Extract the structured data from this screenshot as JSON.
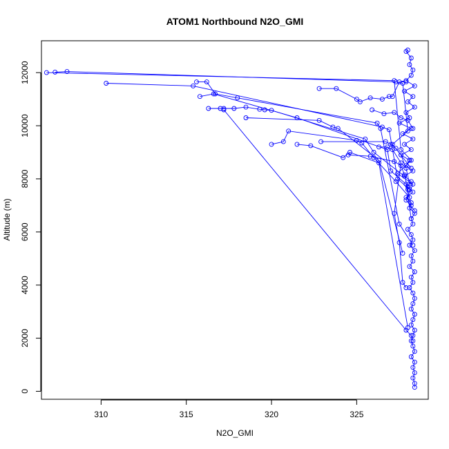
{
  "chart_data": {
    "type": "line",
    "title": "ATOM1 Northbound N2O_GMI",
    "xlabel": "N2O_GMI",
    "ylabel": "Altitude (m)",
    "xlim": [
      306.5,
      329.2
    ],
    "ylim": [
      -300,
      13200
    ],
    "xticks": [
      310,
      315,
      320,
      325
    ],
    "yticks": [
      0,
      2000,
      4000,
      6000,
      8000,
      10000,
      12000
    ],
    "grid": false,
    "legend": "none",
    "colors": {
      "series": "#0000ff",
      "axis": "#000000",
      "background": "#ffffff"
    },
    "markers": "open-circle",
    "series": [
      {
        "values": [
          [
            328.4,
            150
          ],
          [
            328.4,
            300
          ],
          [
            328.3,
            500
          ],
          [
            328.4,
            700
          ],
          [
            328.3,
            900
          ],
          [
            328.4,
            1100
          ],
          [
            328.2,
            1300
          ],
          [
            328.4,
            1500
          ],
          [
            328.3,
            1700
          ],
          [
            328.2,
            1900
          ],
          [
            328.3,
            2100
          ],
          [
            328.4,
            2300
          ],
          [
            328.2,
            2500
          ],
          [
            328.3,
            2700
          ],
          [
            328.4,
            2900
          ],
          [
            328.2,
            3100
          ],
          [
            328.3,
            3300
          ],
          [
            328.4,
            3500
          ],
          [
            328.3,
            3700
          ],
          [
            328.1,
            3900
          ],
          [
            328.3,
            4100
          ],
          [
            328.2,
            4300
          ],
          [
            328.4,
            4500
          ],
          [
            328.1,
            4700
          ],
          [
            328.3,
            4900
          ],
          [
            328.2,
            5100
          ],
          [
            328.4,
            5300
          ],
          [
            328.1,
            5500
          ],
          [
            328.3,
            5700
          ],
          [
            328.2,
            5900
          ],
          [
            328.0,
            6100
          ],
          [
            328.3,
            6300
          ],
          [
            328.2,
            6500
          ],
          [
            328.4,
            6700
          ],
          [
            328.1,
            6900
          ],
          [
            328.2,
            7100
          ],
          [
            327.9,
            7300
          ],
          [
            328.3,
            7500
          ],
          [
            328.0,
            7700
          ],
          [
            328.2,
            7900
          ],
          [
            327.8,
            8100
          ],
          [
            328.3,
            8300
          ],
          [
            327.9,
            8500
          ],
          [
            328.1,
            8700
          ],
          [
            327.6,
            8900
          ],
          [
            328.2,
            9100
          ],
          [
            327.8,
            9300
          ],
          [
            328.3,
            9500
          ],
          [
            327.7,
            9700
          ],
          [
            328.2,
            9900
          ],
          [
            327.5,
            10100
          ],
          [
            328.1,
            10300
          ],
          [
            327.9,
            10500
          ],
          [
            328.4,
            10700
          ],
          [
            328.0,
            10900
          ],
          [
            328.3,
            11100
          ],
          [
            327.8,
            11300
          ],
          [
            328.4,
            11500
          ],
          [
            327.9,
            11700
          ],
          [
            328.2,
            11900
          ],
          [
            328.3,
            12100
          ],
          [
            328.1,
            12300
          ],
          [
            328.2,
            12550
          ],
          [
            327.9,
            12800
          ],
          [
            328.0,
            12850
          ]
        ]
      },
      {
        "values": [
          [
            306.8,
            12000
          ],
          [
            327.2,
            11700
          ],
          [
            327.6,
            9100
          ],
          [
            328.2,
            8700
          ],
          [
            327.4,
            8200
          ],
          [
            328.3,
            7800
          ],
          [
            327.9,
            7200
          ],
          [
            328.4,
            6800
          ]
        ]
      },
      {
        "values": [
          [
            307.3,
            12020
          ],
          [
            308.0,
            12040
          ],
          [
            327.3,
            11650
          ],
          [
            327.7,
            11600
          ],
          [
            328.0,
            9800
          ],
          [
            327.1,
            9300
          ],
          [
            328.2,
            8400
          ]
        ]
      },
      {
        "values": [
          [
            310.3,
            11600
          ],
          [
            315.4,
            11500
          ],
          [
            326.5,
            9950
          ],
          [
            326.9,
            9850
          ],
          [
            327.4,
            8000
          ],
          [
            328.1,
            7600
          ]
        ]
      },
      {
        "values": [
          [
            315.6,
            11650
          ],
          [
            316.2,
            11650
          ],
          [
            316.7,
            11200
          ],
          [
            318.0,
            11050
          ],
          [
            326.2,
            10100
          ],
          [
            326.4,
            9900
          ],
          [
            327.5,
            6300
          ],
          [
            328.3,
            5500
          ]
        ]
      },
      {
        "values": [
          [
            315.8,
            11100
          ],
          [
            316.6,
            11200
          ],
          [
            321.5,
            10300
          ],
          [
            326.8,
            9100
          ],
          [
            327.0,
            8300
          ],
          [
            327.9,
            7800
          ],
          [
            328.2,
            6500
          ]
        ]
      },
      {
        "values": [
          [
            316.3,
            10650
          ],
          [
            317.0,
            10650
          ],
          [
            317.2,
            10650
          ],
          [
            317.8,
            10650
          ],
          [
            318.5,
            10700
          ],
          [
            319.3,
            10620
          ],
          [
            319.6,
            10600
          ],
          [
            320.0,
            10580
          ],
          [
            325.5,
            9500
          ],
          [
            326.0,
            9000
          ],
          [
            327.8,
            8100
          ]
        ]
      },
      {
        "values": [
          [
            318.5,
            10300
          ],
          [
            322.8,
            10200
          ],
          [
            323.6,
            9950
          ],
          [
            323.9,
            9900
          ],
          [
            326.3,
            8700
          ],
          [
            327.7,
            5200
          ]
        ]
      },
      {
        "values": [
          [
            320.0,
            9300
          ],
          [
            320.7,
            9400
          ],
          [
            321.0,
            9800
          ],
          [
            325.0,
            9450
          ],
          [
            325.3,
            9350
          ],
          [
            326.0,
            8800
          ],
          [
            327.3,
            7900
          ],
          [
            328.1,
            7300
          ]
        ]
      },
      {
        "values": [
          [
            321.5,
            9300
          ],
          [
            322.3,
            9250
          ],
          [
            324.2,
            8800
          ],
          [
            324.6,
            9000
          ],
          [
            326.3,
            8600
          ],
          [
            328.0,
            2400
          ]
        ]
      },
      {
        "values": [
          [
            317.2,
            10600
          ],
          [
            327.9,
            2300
          ],
          [
            328.2,
            2100
          ],
          [
            328.3,
            1900
          ]
        ]
      },
      {
        "values": [
          [
            322.8,
            11400
          ],
          [
            323.8,
            11400
          ],
          [
            325.0,
            11000
          ],
          [
            325.2,
            10900
          ],
          [
            325.8,
            11050
          ],
          [
            326.5,
            11000
          ],
          [
            326.9,
            11100
          ],
          [
            327.1,
            11100
          ],
          [
            327.5,
            11650
          ],
          [
            327.9,
            11650
          ]
        ]
      },
      {
        "values": [
          [
            322.9,
            9400
          ],
          [
            326.7,
            9400
          ],
          [
            327.0,
            9300
          ],
          [
            327.3,
            9150
          ],
          [
            327.6,
            8900
          ],
          [
            327.9,
            8400
          ],
          [
            328.1,
            7800
          ]
        ]
      },
      {
        "values": [
          [
            324.5,
            8900
          ],
          [
            325.8,
            8850
          ],
          [
            327.2,
            8650
          ],
          [
            327.6,
            8500
          ],
          [
            327.8,
            8150
          ],
          [
            328.0,
            7600
          ],
          [
            328.2,
            7000
          ]
        ]
      },
      {
        "values": [
          [
            325.9,
            10600
          ],
          [
            326.6,
            10450
          ],
          [
            327.2,
            10500
          ],
          [
            327.6,
            10300
          ],
          [
            328.0,
            10200
          ],
          [
            328.3,
            9900
          ]
        ]
      },
      {
        "values": [
          [
            326.3,
            9200
          ],
          [
            326.8,
            9200
          ],
          [
            327.1,
            9100
          ],
          [
            327.6,
            8600
          ],
          [
            327.2,
            6700
          ],
          [
            327.5,
            5600
          ],
          [
            327.7,
            4100
          ],
          [
            327.9,
            3900
          ]
        ]
      }
    ]
  }
}
